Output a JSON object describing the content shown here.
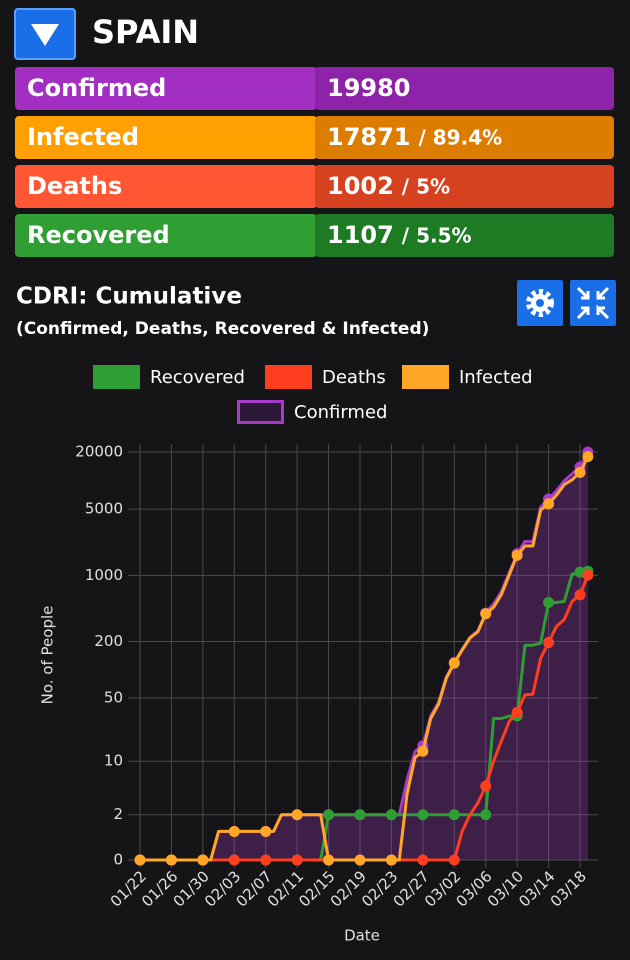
{
  "header": {
    "title": "SPAIN"
  },
  "stats": [
    {
      "label": "Confirmed",
      "value": 19980
    },
    {
      "label": "Infected",
      "value": 17871,
      "share": "/ 89.4%"
    },
    {
      "label": "Deaths",
      "value": 1002,
      "share": "/ 5%"
    },
    {
      "label": "Recovered",
      "value": 1107,
      "share": "/ 5.5%"
    }
  ],
  "chart_data": {
    "type": "line",
    "title": "CDRI: Cumulative",
    "subtitle": "(Confirmed, Deaths, Recovered & Infected)",
    "x_label": "Date",
    "y_label": "No. of People",
    "yscale": "log1p",
    "grid": true,
    "legend": "top",
    "ylim": [
      0,
      20000
    ],
    "yticks": [
      0,
      2,
      10,
      50,
      200,
      1000,
      5000,
      20000
    ],
    "categories": [
      "01/22",
      null,
      null,
      null,
      "01/26",
      null,
      null,
      null,
      "01/30",
      null,
      null,
      null,
      "02/03",
      null,
      null,
      null,
      "02/07",
      null,
      null,
      null,
      "02/11",
      null,
      null,
      null,
      "02/15",
      null,
      null,
      null,
      "02/19",
      null,
      null,
      null,
      "02/23",
      null,
      null,
      null,
      "02/27",
      null,
      null,
      null,
      "03/02",
      null,
      null,
      null,
      "03/06",
      null,
      null,
      null,
      "03/10",
      null,
      null,
      null,
      "03/14",
      null,
      null,
      null,
      "03/18",
      null
    ],
    "series": [
      {
        "name": "Recovered",
        "color": "#2e9e32",
        "values": [
          0,
          0,
          0,
          0,
          0,
          0,
          0,
          0,
          0,
          0,
          0,
          0,
          0,
          0,
          0,
          0,
          0,
          0,
          0,
          0,
          0,
          0,
          0,
          0,
          2,
          2,
          2,
          2,
          2,
          2,
          2,
          2,
          2,
          2,
          2,
          2,
          2,
          2,
          2,
          2,
          2,
          2,
          2,
          2,
          2,
          30,
          30,
          32,
          32,
          183,
          183,
          193,
          517,
          517,
          530,
          1028,
          1081,
          1107
        ]
      },
      {
        "name": "Deaths",
        "color": "#ff3d1f",
        "values": [
          0,
          0,
          0,
          0,
          0,
          0,
          0,
          0,
          0,
          0,
          0,
          0,
          0,
          0,
          0,
          0,
          0,
          0,
          0,
          0,
          0,
          0,
          0,
          0,
          0,
          0,
          0,
          0,
          0,
          0,
          0,
          0,
          0,
          0,
          0,
          0,
          0,
          0,
          0,
          0,
          0,
          1,
          2,
          3,
          5,
          10,
          17,
          28,
          35,
          54,
          55,
          133,
          195,
          289,
          342,
          533,
          623,
          1002
        ]
      },
      {
        "name": "Infected",
        "color": "#ffa726",
        "values": [
          0,
          0,
          0,
          0,
          0,
          0,
          0,
          0,
          0,
          0,
          1,
          1,
          1,
          1,
          1,
          1,
          1,
          1,
          2,
          2,
          2,
          2,
          2,
          2,
          0,
          0,
          0,
          0,
          0,
          0,
          0,
          0,
          0,
          0,
          4,
          11,
          13,
          30,
          43,
          82,
          118,
          162,
          218,
          254,
          393,
          460,
          626,
          1013,
          1628,
          2040,
          2039,
          4906,
          5679,
          6992,
          9070,
          10187,
          12206,
          17871
        ]
      },
      {
        "name": "Confirmed",
        "color": "#a83cc8",
        "values": [
          0,
          0,
          0,
          0,
          0,
          0,
          0,
          0,
          0,
          0,
          1,
          1,
          1,
          1,
          1,
          1,
          1,
          1,
          2,
          2,
          2,
          2,
          2,
          2,
          2,
          2,
          2,
          2,
          2,
          2,
          2,
          2,
          2,
          2,
          6,
          13,
          15,
          32,
          45,
          84,
          120,
          165,
          222,
          259,
          400,
          500,
          673,
          1073,
          1695,
          2277,
          2277,
          5232,
          6391,
          7798,
          9942,
          11748,
          13910,
          19980
        ]
      }
    ]
  }
}
